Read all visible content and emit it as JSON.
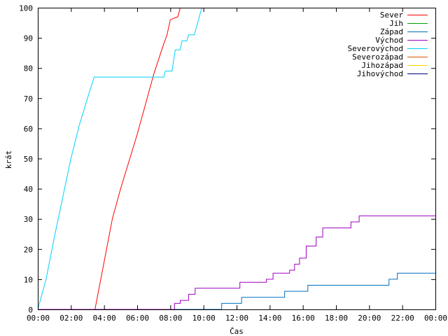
{
  "chart_data": {
    "type": "line",
    "title": "",
    "xlabel": "Čas",
    "ylabel": "krát",
    "xlim": [
      0,
      24
    ],
    "ylim": [
      0,
      100
    ],
    "x_unit": "hours since 00:00",
    "x_ticks": [
      {
        "x": 0,
        "label": "00:00"
      },
      {
        "x": 2,
        "label": "02:00"
      },
      {
        "x": 4,
        "label": "04:00"
      },
      {
        "x": 6,
        "label": "06:00"
      },
      {
        "x": 8,
        "label": "08:00"
      },
      {
        "x": 10,
        "label": "10:00"
      },
      {
        "x": 12,
        "label": "12:00"
      },
      {
        "x": 14,
        "label": "14:00"
      },
      {
        "x": 16,
        "label": "16:00"
      },
      {
        "x": 18,
        "label": "18:00"
      },
      {
        "x": 20,
        "label": "20:00"
      },
      {
        "x": 22,
        "label": "22:00"
      },
      {
        "x": 24,
        "label": "00:00"
      }
    ],
    "y_ticks": [
      0,
      10,
      20,
      30,
      40,
      50,
      60,
      70,
      80,
      90,
      100
    ],
    "grid": false,
    "legend_position": "top-right",
    "series": [
      {
        "name": "Sever",
        "color": "#ff0000",
        "points": [
          [
            0,
            0
          ],
          [
            3.45,
            0
          ],
          [
            4.5,
            30
          ],
          [
            5.0,
            40
          ],
          [
            6.0,
            58
          ],
          [
            7.0,
            78
          ],
          [
            7.6,
            88
          ],
          [
            7.8,
            91
          ],
          [
            8.0,
            96
          ],
          [
            8.45,
            97
          ],
          [
            8.6,
            100
          ]
        ]
      },
      {
        "name": "Jih",
        "color": "#00a000",
        "points": []
      },
      {
        "name": "Západ",
        "color": "#0070c0",
        "points": [
          [
            0,
            0
          ],
          [
            11.1,
            0
          ],
          [
            11.1,
            2
          ],
          [
            12.3,
            2
          ],
          [
            12.3,
            4
          ],
          [
            14.9,
            4
          ],
          [
            14.9,
            6
          ],
          [
            16.3,
            6
          ],
          [
            16.3,
            8
          ],
          [
            21.2,
            8
          ],
          [
            21.2,
            10
          ],
          [
            21.7,
            10
          ],
          [
            21.7,
            12
          ],
          [
            24,
            12
          ]
        ]
      },
      {
        "name": "Východ",
        "color": "#a000c0",
        "points": [
          [
            0,
            0
          ],
          [
            8.25,
            0
          ],
          [
            8.25,
            2
          ],
          [
            8.6,
            2
          ],
          [
            8.6,
            3
          ],
          [
            9.1,
            3
          ],
          [
            9.1,
            5
          ],
          [
            9.5,
            5
          ],
          [
            9.5,
            7
          ],
          [
            12.2,
            7
          ],
          [
            12.2,
            9
          ],
          [
            13.8,
            9
          ],
          [
            13.8,
            10
          ],
          [
            14.2,
            10
          ],
          [
            14.2,
            12
          ],
          [
            15.2,
            12
          ],
          [
            15.2,
            13
          ],
          [
            15.5,
            13
          ],
          [
            15.5,
            15
          ],
          [
            15.8,
            15
          ],
          [
            15.8,
            17
          ],
          [
            16.2,
            17
          ],
          [
            16.2,
            21
          ],
          [
            16.8,
            21
          ],
          [
            16.8,
            24
          ],
          [
            17.2,
            24
          ],
          [
            17.2,
            27
          ],
          [
            18.9,
            27
          ],
          [
            18.9,
            29
          ],
          [
            19.4,
            29
          ],
          [
            19.4,
            31
          ],
          [
            24,
            31
          ]
        ]
      },
      {
        "name": "Severovýchod",
        "color": "#00d0ff",
        "points": [
          [
            0,
            0
          ],
          [
            0.5,
            10
          ],
          [
            1.0,
            24
          ],
          [
            1.5,
            37
          ],
          [
            2.0,
            50
          ],
          [
            2.5,
            61
          ],
          [
            3.0,
            70
          ],
          [
            3.4,
            77
          ],
          [
            7.6,
            77
          ],
          [
            7.7,
            79
          ],
          [
            8.1,
            79
          ],
          [
            8.3,
            86
          ],
          [
            8.6,
            86
          ],
          [
            8.7,
            89
          ],
          [
            9.0,
            89
          ],
          [
            9.1,
            91
          ],
          [
            9.45,
            91
          ],
          [
            9.9,
            100
          ]
        ]
      },
      {
        "name": "Severozápad",
        "color": "#e05000",
        "points": []
      },
      {
        "name": "Jihozápad",
        "color": "#ffd000",
        "points": []
      },
      {
        "name": "Jihovýchod",
        "color": "#000080",
        "points": []
      }
    ]
  }
}
